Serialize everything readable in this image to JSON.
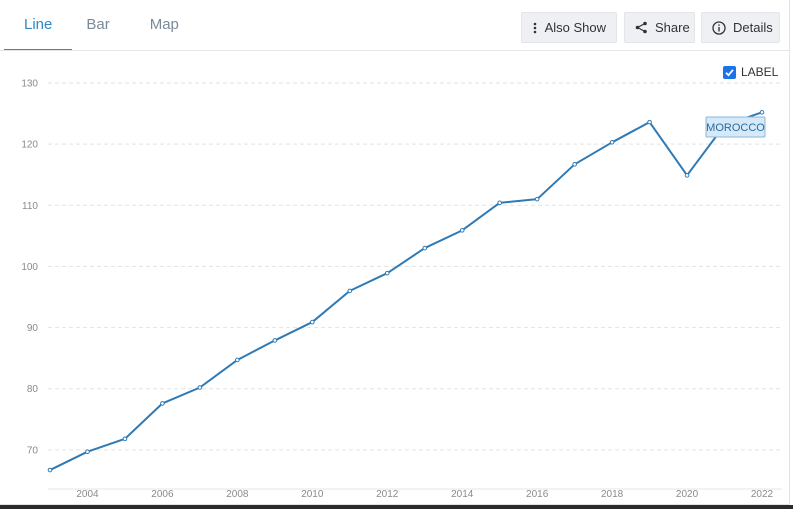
{
  "tabs": [
    {
      "label": "Line",
      "active": true
    },
    {
      "label": "Bar",
      "active": false
    },
    {
      "label": "Map",
      "active": false
    }
  ],
  "toolbar": {
    "also_show": "Also Show",
    "share": "Share",
    "details": "Details"
  },
  "label_toggle": {
    "text": "LABEL",
    "checked": true
  },
  "colors": {
    "accent": "#2f8ac5",
    "line": "#2f7ab5",
    "checkbox": "#1a73e8"
  },
  "chart_data": {
    "type": "line",
    "x": [
      2003,
      2004,
      2005,
      2006,
      2007,
      2008,
      2009,
      2010,
      2011,
      2012,
      2013,
      2014,
      2015,
      2016,
      2017,
      2018,
      2019,
      2020,
      2021,
      2022
    ],
    "series": [
      {
        "name": "MOROCCO",
        "values": [
          66.7,
          69.7,
          71.8,
          77.6,
          80.2,
          84.7,
          87.9,
          90.9,
          96.0,
          98.9,
          103.0,
          105.9,
          110.4,
          111.0,
          116.7,
          120.3,
          123.6,
          114.9,
          123.1,
          125.2
        ]
      }
    ],
    "xticks": [
      "2004",
      "2006",
      "2008",
      "2010",
      "2012",
      "2014",
      "2016",
      "2018",
      "2020",
      "2022"
    ],
    "yticks": [
      "70",
      "80",
      "90",
      "100",
      "110",
      "120",
      "130"
    ],
    "ylim": [
      65,
      131
    ],
    "grid": true,
    "title": "",
    "xlabel": "",
    "ylabel": ""
  }
}
